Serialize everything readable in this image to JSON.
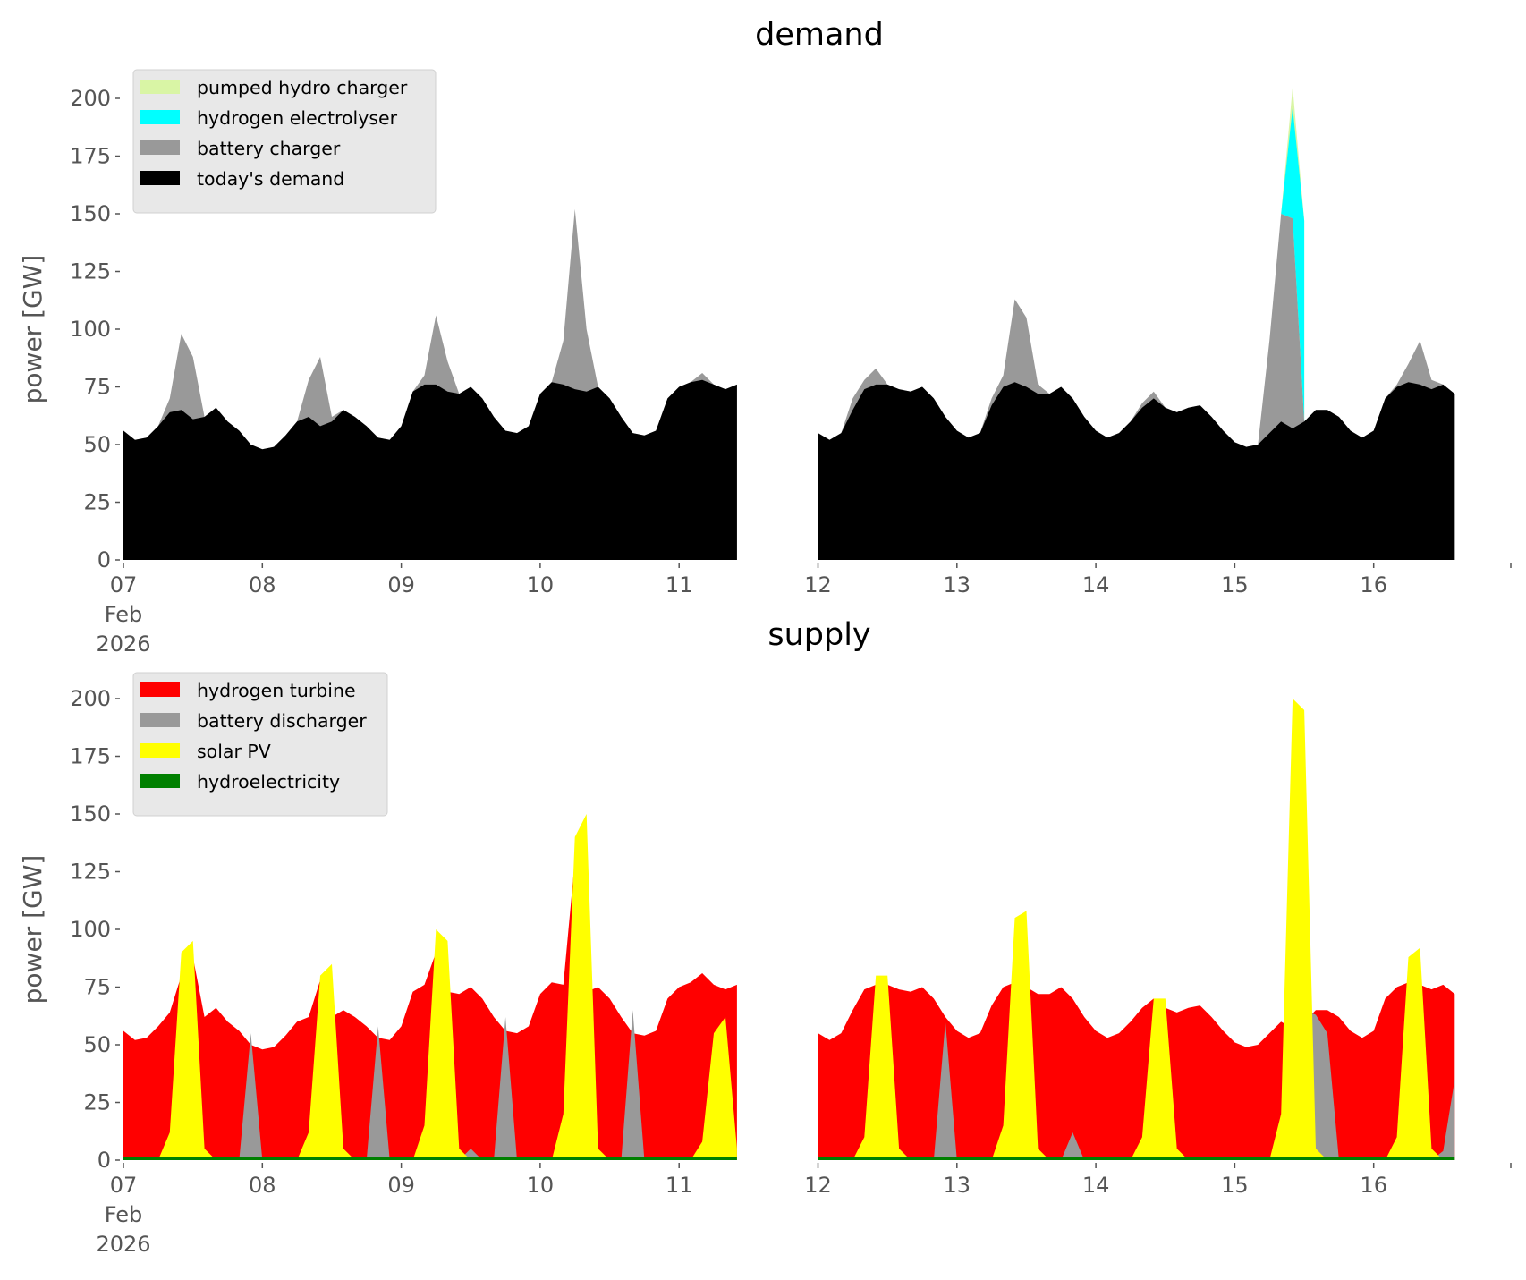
{
  "chart_data": [
    {
      "type": "area",
      "title": "demand",
      "ylabel": "power [GW]",
      "xlabel": "",
      "ylim": [
        0,
        210
      ],
      "yticks": [
        0,
        25,
        50,
        75,
        100,
        125,
        150,
        175,
        200
      ],
      "xticks": [
        {
          "day": 7,
          "label": "07",
          "sub": [
            "Feb",
            "2026"
          ]
        },
        {
          "day": 8,
          "label": "08"
        },
        {
          "day": 9,
          "label": "09"
        },
        {
          "day": 10,
          "label": "10"
        },
        {
          "day": 11,
          "label": "11"
        },
        {
          "day": 12,
          "label": "12"
        },
        {
          "day": 13,
          "label": "13"
        },
        {
          "day": 14,
          "label": "14"
        },
        {
          "day": 15,
          "label": "15"
        },
        {
          "day": 16,
          "label": "16"
        },
        {
          "day": 17,
          "label": ""
        }
      ],
      "legend_position": "top-left",
      "legend": [
        {
          "label": "pumped hydro charger",
          "color": "#d9f5a5"
        },
        {
          "label": "hydrogen electrolyser",
          "color": "#00ffff"
        },
        {
          "label": "battery charger",
          "color": "#999999"
        },
        {
          "label": "today's demand",
          "color": "#000000"
        }
      ],
      "x_unit": "day of Feb 2026, 2-hour steps",
      "segments": [
        {
          "start_day": 7.0,
          "step_hours": 2,
          "todays_demand": [
            56,
            52,
            53,
            58,
            64,
            65,
            61,
            62,
            66,
            60,
            56,
            50,
            48,
            49,
            54,
            60,
            62,
            58,
            60,
            65,
            62,
            58,
            53,
            52,
            58,
            73,
            76,
            76,
            73,
            72,
            75,
            70,
            62,
            56,
            55,
            58,
            72,
            77,
            76,
            74,
            73,
            75,
            70,
            62,
            55,
            54,
            56,
            70,
            75,
            77,
            78,
            76,
            74,
            76
          ],
          "battery_charger_top": [
            56,
            52,
            53,
            58,
            70,
            98,
            88,
            62,
            66,
            60,
            56,
            50,
            48,
            49,
            54,
            60,
            78,
            88,
            62,
            65,
            62,
            58,
            53,
            52,
            58,
            73,
            80,
            106,
            86,
            72,
            75,
            70,
            62,
            56,
            55,
            58,
            72,
            77,
            95,
            152,
            100,
            75,
            70,
            62,
            55,
            54,
            56,
            70,
            75,
            77,
            81,
            76,
            74,
            76
          ],
          "electrolyser_top": null,
          "pumped_hydro_top": null
        },
        {
          "start_day": 12.0,
          "step_hours": 2,
          "todays_demand": [
            55,
            52,
            55,
            65,
            74,
            76,
            76,
            74,
            73,
            75,
            70,
            62,
            56,
            53,
            55,
            67,
            75,
            77,
            75,
            72,
            72,
            75,
            70,
            62,
            56,
            53,
            55,
            60,
            66,
            70,
            66,
            64,
            66,
            67,
            62,
            56,
            51,
            49,
            50,
            55,
            60,
            57,
            60,
            65,
            65,
            62,
            56,
            53,
            56,
            70,
            75,
            77,
            76,
            74,
            76,
            72
          ],
          "battery_charger_top": [
            55,
            52,
            55,
            70,
            78,
            83,
            76,
            74,
            73,
            75,
            70,
            62,
            56,
            53,
            55,
            70,
            80,
            113,
            105,
            76,
            72,
            75,
            70,
            62,
            56,
            53,
            55,
            60,
            68,
            73,
            66,
            64,
            66,
            67,
            62,
            56,
            51,
            49,
            50,
            95,
            150,
            148,
            60,
            65,
            65,
            62,
            56,
            53,
            56,
            70,
            76,
            85,
            95,
            78,
            76,
            72
          ],
          "electrolyser_top": {
            "from_index": 40,
            "values": [
              150,
              196,
              147
            ]
          },
          "pumped_hydro_top": {
            "from_index": 40,
            "values": [
              150,
              205,
              147
            ]
          }
        }
      ]
    },
    {
      "type": "area",
      "title": "supply",
      "ylabel": "power [GW]",
      "xlabel": "",
      "ylim": [
        0,
        210
      ],
      "yticks": [
        0,
        25,
        50,
        75,
        100,
        125,
        150,
        175,
        200
      ],
      "xticks": [
        {
          "day": 7,
          "label": "07",
          "sub": [
            "Feb",
            "2026"
          ]
        },
        {
          "day": 8,
          "label": "08"
        },
        {
          "day": 9,
          "label": "09"
        },
        {
          "day": 10,
          "label": "10"
        },
        {
          "day": 11,
          "label": "11"
        },
        {
          "day": 12,
          "label": "12"
        },
        {
          "day": 13,
          "label": "13"
        },
        {
          "day": 14,
          "label": "14"
        },
        {
          "day": 15,
          "label": "15"
        },
        {
          "day": 16,
          "label": "16"
        },
        {
          "day": 17,
          "label": ""
        }
      ],
      "legend_position": "top-left",
      "legend": [
        {
          "label": "hydrogen turbine",
          "color": "#ff0000"
        },
        {
          "label": "battery discharger",
          "color": "#999999"
        },
        {
          "label": "solar PV",
          "color": "#ffff00"
        },
        {
          "label": "hydroelectricity",
          "color": "#008000"
        }
      ],
      "segments": [
        {
          "start_day": 7.0,
          "step_hours": 2,
          "hydrogen_turbine_top": [
            56,
            52,
            53,
            58,
            64,
            80,
            88,
            62,
            66,
            60,
            56,
            50,
            48,
            49,
            54,
            60,
            62,
            78,
            62,
            65,
            62,
            58,
            53,
            52,
            58,
            73,
            76,
            90,
            73,
            72,
            75,
            70,
            62,
            56,
            55,
            58,
            72,
            77,
            76,
            130,
            73,
            75,
            70,
            62,
            55,
            54,
            56,
            70,
            75,
            77,
            81,
            76,
            74,
            76
          ],
          "battery_discharger": [
            0,
            0,
            0,
            0,
            0,
            0,
            0,
            0,
            0,
            0,
            0,
            55,
            0,
            0,
            0,
            0,
            0,
            0,
            0,
            0,
            0,
            0,
            58,
            0,
            0,
            0,
            0,
            0,
            0,
            0,
            5,
            0,
            0,
            62,
            0,
            0,
            0,
            0,
            0,
            0,
            0,
            0,
            0,
            0,
            65,
            0,
            0,
            0,
            0,
            0,
            0,
            0,
            0,
            0
          ],
          "solar_pv": [
            0,
            0,
            0,
            0,
            12,
            90,
            95,
            5,
            0,
            0,
            0,
            0,
            0,
            0,
            0,
            0,
            12,
            80,
            85,
            5,
            0,
            0,
            0,
            0,
            0,
            0,
            15,
            100,
            95,
            5,
            0,
            0,
            0,
            0,
            0,
            0,
            0,
            0,
            20,
            140,
            150,
            5,
            0,
            0,
            0,
            0,
            0,
            0,
            0,
            0,
            8,
            55,
            62,
            5
          ],
          "hydroelectricity": 1.5
        },
        {
          "start_day": 12.0,
          "step_hours": 2,
          "hydrogen_turbine_top": [
            55,
            52,
            55,
            65,
            74,
            76,
            76,
            74,
            73,
            75,
            70,
            62,
            56,
            53,
            55,
            67,
            75,
            77,
            75,
            72,
            72,
            75,
            70,
            62,
            56,
            53,
            55,
            60,
            66,
            70,
            66,
            64,
            66,
            67,
            62,
            56,
            51,
            49,
            50,
            55,
            60,
            57,
            60,
            65,
            65,
            62,
            56,
            53,
            56,
            70,
            75,
            77,
            76,
            74,
            76,
            72
          ],
          "battery_discharger": [
            0,
            0,
            0,
            0,
            0,
            0,
            0,
            5,
            0,
            0,
            0,
            60,
            0,
            0,
            0,
            0,
            0,
            0,
            0,
            0,
            0,
            0,
            12,
            0,
            0,
            0,
            0,
            0,
            0,
            0,
            0,
            0,
            0,
            0,
            0,
            0,
            0,
            0,
            0,
            0,
            0,
            60,
            65,
            63,
            55,
            0,
            0,
            0,
            0,
            0,
            0,
            0,
            0,
            0,
            4,
            35
          ],
          "solar_pv": [
            0,
            0,
            0,
            0,
            10,
            80,
            80,
            5,
            0,
            0,
            0,
            0,
            0,
            0,
            0,
            0,
            15,
            105,
            108,
            5,
            0,
            0,
            0,
            0,
            0,
            0,
            0,
            0,
            10,
            70,
            70,
            5,
            0,
            0,
            0,
            0,
            0,
            0,
            0,
            0,
            20,
            200,
            195,
            5,
            0,
            0,
            0,
            0,
            0,
            0,
            10,
            88,
            92,
            5,
            0,
            0
          ],
          "hydroelectricity": 1.5
        }
      ]
    }
  ]
}
